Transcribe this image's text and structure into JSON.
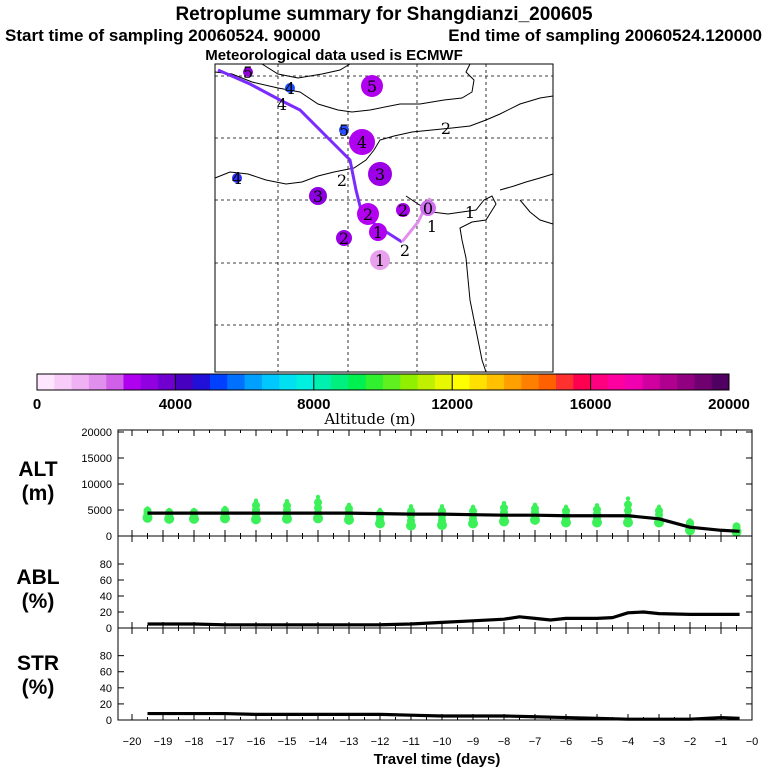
{
  "header": {
    "title": "Retroplume summary for Shangdianzi_200605",
    "start_label": "Start time of sampling 20060524. 90000",
    "end_label": "End time of sampling 20060524.120000",
    "met_label": "Meteorological data used is ECMWF"
  },
  "map": {
    "trajectory_color": "#7a2cff",
    "late_segment_color": "#e090ec",
    "markers": [
      {
        "label": "5",
        "color": "#9100d8",
        "r": 5
      },
      {
        "label": "4",
        "color": "#1a50ff",
        "r": 5
      },
      {
        "label": "5",
        "color": "#b000f0",
        "r": 11
      },
      {
        "label": "5",
        "color": "#2a4cff",
        "r": 5
      },
      {
        "label": "4",
        "color": "#b000f0",
        "r": 13
      },
      {
        "label": "2",
        "color": "#ffffff",
        "r": 0
      },
      {
        "label": "3",
        "color": "#9c00e6",
        "r": 12
      },
      {
        "label": "4",
        "color": "#2a30ff",
        "r": 5
      },
      {
        "label": "3",
        "color": "#8c00e0",
        "r": 9
      },
      {
        "label": "2",
        "color": "#b300f0",
        "r": 11
      },
      {
        "label": "2",
        "color": "#9c00e6",
        "r": 8
      },
      {
        "label": "1",
        "color": "#b000f0",
        "r": 9
      },
      {
        "label": "2",
        "color": "#a800ec",
        "r": 7
      },
      {
        "label": "0",
        "color": "#d070f0",
        "r": 8
      },
      {
        "label": "1",
        "color": "#e9a0ec",
        "r": 10
      },
      {
        "label": "1",
        "color": "#ffffff",
        "r": 0
      },
      {
        "label": "1",
        "color": "#ffffff",
        "r": 0
      },
      {
        "label": "2",
        "color": "#ffffff",
        "r": 0
      },
      {
        "label": "4",
        "color": "#ffffff",
        "r": 0
      },
      {
        "label": "2",
        "color": "#ffffff",
        "r": 0
      }
    ]
  },
  "colorbar": {
    "title": "Altitude (m)",
    "tick_labels": [
      "0",
      "4000",
      "8000",
      "12000",
      "16000",
      "20000"
    ],
    "colors": [
      "#ffe6ff",
      "#f8ccf8",
      "#f0b0f4",
      "#e090ec",
      "#d060e8",
      "#b000f0",
      "#9000e0",
      "#7000d0",
      "#4800c0",
      "#2010d8",
      "#0040ff",
      "#0070ff",
      "#00a0ff",
      "#00c8ff",
      "#00e0f0",
      "#00f0e0",
      "#00f0b0",
      "#00f080",
      "#00f050",
      "#30f030",
      "#60f020",
      "#90f000",
      "#c0f000",
      "#e8f800",
      "#ffff00",
      "#ffe000",
      "#ffc000",
      "#ffa000",
      "#ff8000",
      "#ff6000",
      "#ff3030",
      "#ff0050",
      "#ff0080",
      "#ff00a0",
      "#f000b0",
      "#d000a0",
      "#b00090",
      "#900080",
      "#700070",
      "#500060"
    ]
  },
  "panels": {
    "alt_label_1": "ALT",
    "alt_label_2": "(m)",
    "abl_label_1": "ABL",
    "abl_label_2": "(%)",
    "str_label_1": "STR",
    "str_label_2": "(%)",
    "xlabel": "Travel time (days)"
  },
  "chart_data": {
    "type": "line",
    "x_axis": {
      "label": "Travel time (days)",
      "range": [
        -20,
        0
      ],
      "tick_labels": [
        "−20",
        "−19",
        "−18",
        "−17",
        "−16",
        "−15",
        "−14",
        "−13",
        "−12",
        "−11",
        "−10",
        "−9",
        "−8",
        "−7",
        "−6",
        "−5",
        "−4",
        "−3",
        "−2",
        "−1",
        "−0"
      ]
    },
    "alt": {
      "ylabel": "ALT (m)",
      "ylim": [
        0,
        20000
      ],
      "tick_labels": [
        "20000",
        "15000",
        "10000",
        "5000",
        "0"
      ],
      "series_x": [
        -19.5,
        -18,
        -17,
        -16,
        -15,
        -14,
        -13,
        -12,
        -11,
        -10,
        -9,
        -8,
        -7,
        -6,
        -5,
        -4,
        -3,
        -2,
        -1,
        -0.4
      ],
      "series_y": [
        4400,
        4400,
        4400,
        4400,
        4400,
        4400,
        4400,
        4300,
        4200,
        4200,
        4100,
        4000,
        4000,
        3900,
        3900,
        3900,
        3300,
        1700,
        1100,
        900
      ],
      "dots_x": [
        -19.5,
        -18.8,
        -18,
        -17,
        -16,
        -15,
        -14,
        -13,
        -12,
        -11,
        -10,
        -9,
        -8,
        -7,
        -6,
        -5,
        -4,
        -3,
        -2,
        -0.5
      ],
      "dots_low": [
        3500,
        3300,
        3300,
        3400,
        3200,
        3300,
        3400,
        3100,
        2400,
        2000,
        2100,
        2400,
        2800,
        3100,
        2600,
        2600,
        2600,
        2600,
        1100,
        800
      ],
      "dots_high": [
        5300,
        5000,
        5000,
        5400,
        6800,
        6700,
        7500,
        6000,
        5000,
        5700,
        5700,
        5600,
        6300,
        6000,
        5600,
        5900,
        7200,
        5600,
        3000,
        2200
      ],
      "series_color": "#000000",
      "dots_color": "#3cf05a"
    },
    "abl": {
      "ylabel": "ABL (%)",
      "ylim": [
        0,
        100
      ],
      "tick_labels": [
        "80",
        "60",
        "40",
        "20",
        "0"
      ],
      "series_x": [
        -19.5,
        -18,
        -17,
        -16,
        -15,
        -14,
        -13,
        -12,
        -11,
        -10,
        -9,
        -8,
        -7.5,
        -7,
        -6.5,
        -6,
        -5,
        -4.5,
        -4,
        -3.5,
        -3,
        -2,
        -1,
        -0.4
      ],
      "series_y": [
        5,
        5,
        4,
        4,
        4,
        4,
        4,
        4,
        5,
        7,
        9,
        11,
        14,
        12,
        10,
        12,
        12,
        13,
        19,
        20,
        18,
        17,
        17,
        17
      ]
    },
    "str": {
      "ylabel": "STR (%)",
      "ylim": [
        0,
        100
      ],
      "tick_labels": [
        "80",
        "60",
        "40",
        "20",
        "0"
      ],
      "series_x": [
        -19.5,
        -18,
        -17,
        -16,
        -15,
        -14,
        -13,
        -12,
        -11,
        -10,
        -9,
        -8,
        -7,
        -6,
        -5,
        -4,
        -3,
        -2,
        -1,
        -0.4
      ],
      "series_y": [
        8,
        8,
        8,
        7,
        7,
        7,
        7,
        7,
        6,
        5,
        5,
        5,
        4,
        3,
        2,
        1,
        1,
        1,
        3,
        2
      ]
    }
  }
}
